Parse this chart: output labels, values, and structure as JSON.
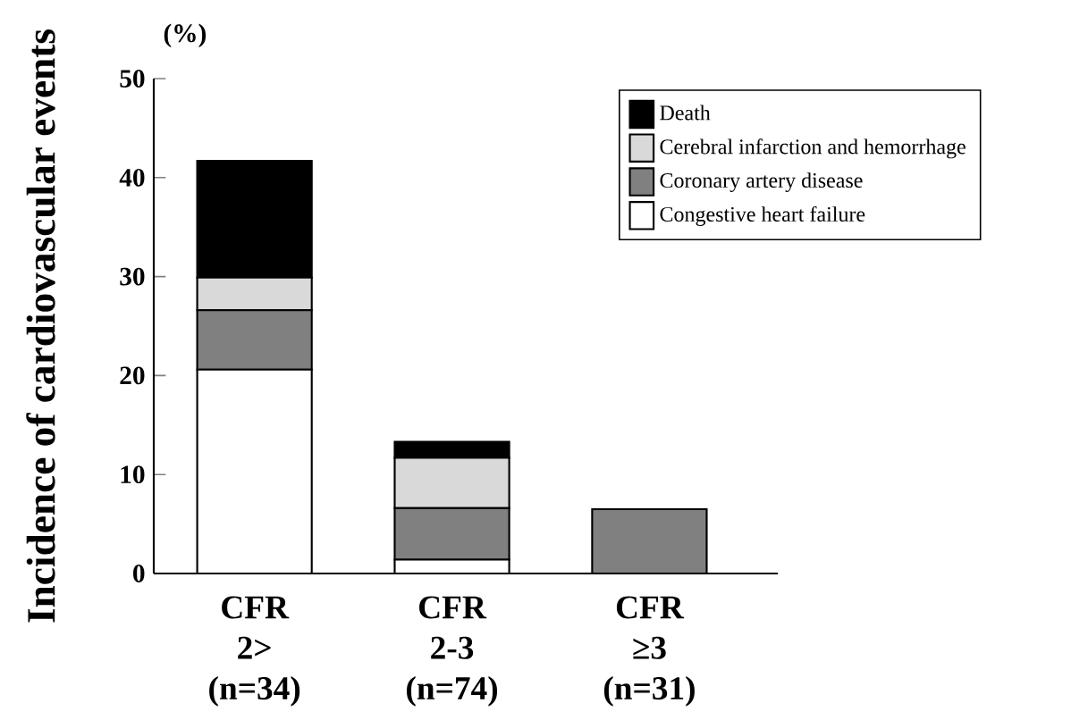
{
  "chart_data": {
    "type": "bar",
    "stacked": true,
    "ylabel": "Incidence of cardiovascular events",
    "annotations": [
      "(%)"
    ],
    "categories": [
      "CFR 2> (n=34)",
      "CFR 2-3 (n=74)",
      "CFR ≥3 (n=31)"
    ],
    "series": [
      {
        "name": "Congestive heart failure",
        "color": "#ffffff",
        "values": [
          20.6,
          1.4,
          0
        ]
      },
      {
        "name": "Coronary artery disease",
        "color": "#808080",
        "values": [
          6.0,
          5.2,
          6.5
        ]
      },
      {
        "name": "Cerebral infarction and hemorrhage",
        "color": "#d9d9d9",
        "values": [
          3.3,
          5.1,
          0
        ]
      },
      {
        "name": "Death",
        "color": "#000000",
        "values": [
          11.8,
          1.6,
          0
        ]
      }
    ],
    "ylim": [
      0,
      50
    ],
    "yticks": [
      0,
      10,
      20,
      30,
      40,
      50
    ],
    "legend": "top right"
  }
}
